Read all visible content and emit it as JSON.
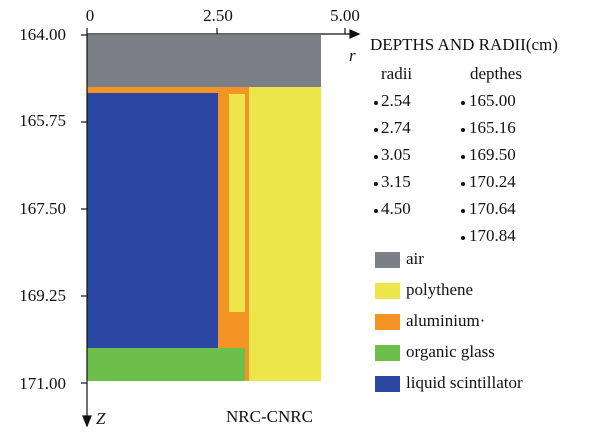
{
  "axes": {
    "x_ticks": [
      "0",
      "2.50",
      "5.00"
    ],
    "x_label": "r",
    "y_ticks": [
      "164.00",
      "165.75",
      "167.50",
      "169.25",
      "171.00"
    ],
    "y_label": "Z"
  },
  "info": {
    "title": "DEPTHS AND RADII(cm)",
    "radii_header": "radii",
    "depths_header": "depthes",
    "radii": [
      "2.54",
      "2.74",
      "3.05",
      "3.15",
      "4.50"
    ],
    "depths": [
      "165.00",
      "165.16",
      "169.50",
      "170.24",
      "170.64",
      "170.84"
    ]
  },
  "legend": [
    {
      "label": "air",
      "color": "#7b8088"
    },
    {
      "label": "polythene",
      "color": "#ece64a"
    },
    {
      "label": "aluminium·",
      "color": "#f39425"
    },
    {
      "label": "organic glass",
      "color": "#6dbe4a"
    },
    {
      "label": "liquid scintillator",
      "color": "#2b46a3"
    }
  ],
  "footer": "NRC-CNRC"
}
